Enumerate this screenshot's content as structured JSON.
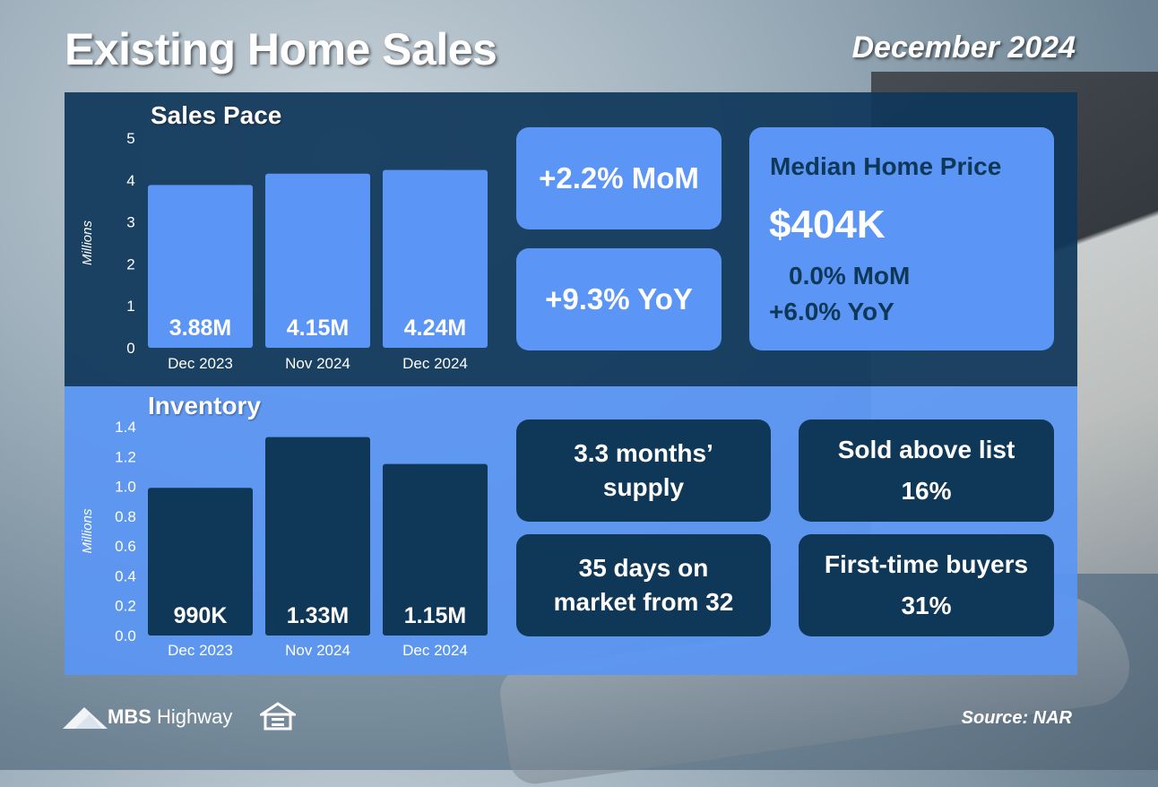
{
  "header": {
    "title": "Existing Home Sales",
    "date": "December 2024"
  },
  "sales_pace": {
    "title": "Sales Pace",
    "mom_label": "+2.2% MoM",
    "yoy_label": "+9.3% YoY"
  },
  "median_price": {
    "title": "Median Home Price",
    "value": "$404K",
    "mom": "0.0% MoM",
    "yoy": "+6.0% YoY"
  },
  "inventory": {
    "title": "Inventory",
    "supply_line1": "3.3 months’",
    "supply_line2": "supply",
    "days_line1": "35 days on",
    "days_line2": "market from 32",
    "above_list_label": "Sold above list",
    "above_list_value": "16%",
    "first_time_label": "First-time buyers",
    "first_time_value": "31%"
  },
  "footer": {
    "brand_bold": "MBS",
    "brand_rest": " Highway",
    "source": "Source: NAR"
  },
  "colors": {
    "navy": "#0f3757",
    "blue": "#5b95f5"
  },
  "icons": {
    "logo": "mountain-logo-icon",
    "equal_housing": "equal-housing-icon"
  },
  "chart_data": [
    {
      "type": "bar",
      "title": "Sales Pace",
      "ylabel": "Millions",
      "categories": [
        "Dec 2023",
        "Nov 2024",
        "Dec 2024"
      ],
      "values": [
        3.88,
        4.15,
        4.24
      ],
      "data_labels": [
        "3.88M",
        "4.15M",
        "4.24M"
      ],
      "ylim": [
        0,
        5
      ],
      "yticks": [
        "0",
        "1",
        "2",
        "3",
        "4",
        "5"
      ],
      "bar_color": "#5b95f5",
      "label_color": "#ffffff",
      "grid": false
    },
    {
      "type": "bar",
      "title": "Inventory",
      "ylabel": "Millions",
      "categories": [
        "Dec 2023",
        "Nov 2024",
        "Dec 2024"
      ],
      "values": [
        0.99,
        1.33,
        1.15
      ],
      "data_labels": [
        "990K",
        "1.33M",
        "1.15M"
      ],
      "ylim": [
        0,
        1.4
      ],
      "yticks": [
        "0.0",
        "0.2",
        "0.4",
        "0.6",
        "0.8",
        "1.0",
        "1.2",
        "1.4"
      ],
      "bar_color": "#0f3757",
      "label_color": "#ffffff",
      "grid": false
    }
  ]
}
